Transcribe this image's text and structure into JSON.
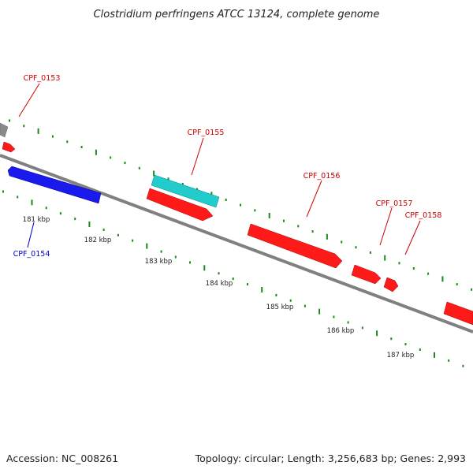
{
  "title": "Clostridium perfringens ATCC 13124, complete genome",
  "footer": {
    "accession": "Accession: NC_008261",
    "summary": "Topology: circular; Length: 3,256,683 bp; Genes: 2,993"
  },
  "colors": {
    "forward_gene": "#ff0000",
    "reverse_gene": "#0000ff",
    "rna_gene": "#00cccc",
    "other_feature": "#808080",
    "backbone": "#808080",
    "gc_ticks": "#1a8a1a",
    "forward_label": "#cc0000",
    "reverse_label": "#0000cc"
  },
  "scale_labels": [
    "181 kbp",
    "182 kbp",
    "183 kbp",
    "184 kbp",
    "185 kbp",
    "186 kbp",
    "187 kbp"
  ],
  "gene_labels": [
    {
      "name": "CPF_0153",
      "strand": "forward"
    },
    {
      "name": "CPF_0154",
      "strand": "reverse"
    },
    {
      "name": "CPF_0155",
      "strand": "forward"
    },
    {
      "name": "CPF_0156",
      "strand": "forward"
    },
    {
      "name": "CPF_0157",
      "strand": "forward"
    },
    {
      "name": "CPF_0158",
      "strand": "forward"
    }
  ]
}
